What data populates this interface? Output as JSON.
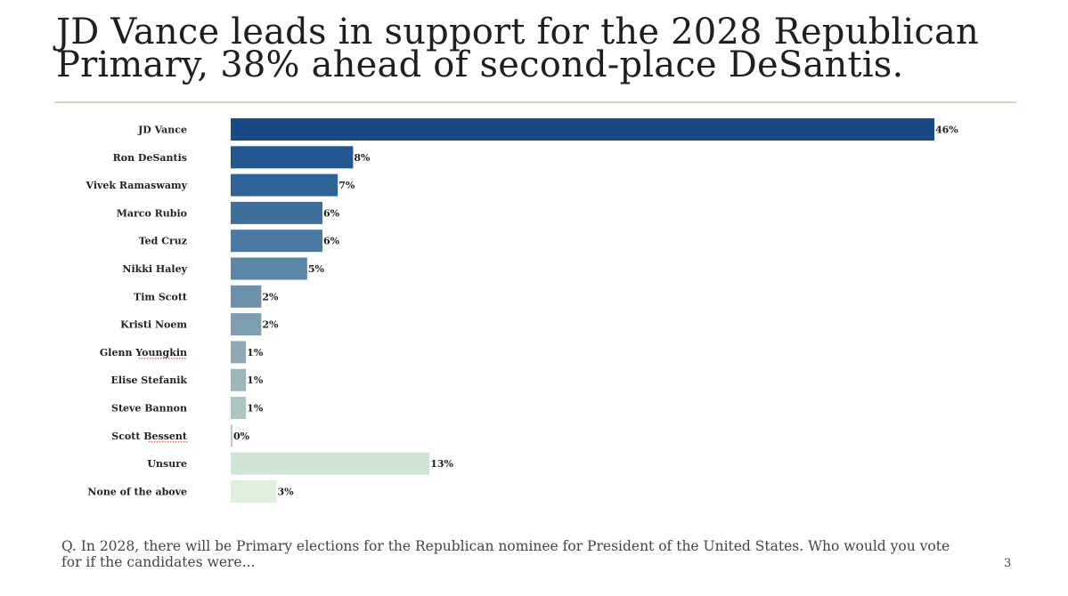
{
  "slide": {
    "title": "JD Vance leads in support for the 2028 Republican Primary, 38% ahead of second-place DeSantis.",
    "question": "Q. In 2028, there will be Primary elections for the Republican nominee for President of the United States. Who would you vote for if the candidates were...",
    "page_number": "3"
  },
  "chart_data": {
    "type": "bar",
    "orientation": "horizontal",
    "title": "JD Vance leads in support for the 2028 Republican Primary, 38% ahead of second-place DeSantis.",
    "xlabel": "",
    "ylabel": "",
    "grid": false,
    "legend": "none",
    "xlim": [
      0,
      46
    ],
    "value_suffix": "%",
    "categories": [
      "JD Vance",
      "Ron DeSantis",
      "Vivek Ramaswamy",
      "Marco Rubio",
      "Ted Cruz",
      "Nikki Haley",
      "Tim Scott",
      "Kristi Noem",
      "Glenn Youngkin",
      "Elise Stefanik",
      "Steve Bannon",
      "Scott Bessent",
      "Unsure",
      "None of the above"
    ],
    "values": [
      46,
      8,
      7,
      6,
      6,
      5,
      2,
      2,
      1,
      1,
      1,
      0,
      13,
      3
    ],
    "value_labels": [
      "46%",
      "8%",
      "7%",
      "6%",
      "6%",
      "5%",
      "2%",
      "2%",
      "1%",
      "1%",
      "1%",
      "0%",
      "13%",
      "3%"
    ],
    "colors": [
      "#1a4a86",
      "#24568f",
      "#2f6297",
      "#3f6f9d",
      "#4c79a1",
      "#5b86a6",
      "#6c8fac",
      "#7d9eb1",
      "#8ea9b5",
      "#9db6ba",
      "#adc5c0",
      "#b7ccc4",
      "#cfe4d2",
      "#dff0dc"
    ],
    "spellcheck_underlined": [
      "Glenn Youngkin",
      "Scott Bessent"
    ]
  }
}
